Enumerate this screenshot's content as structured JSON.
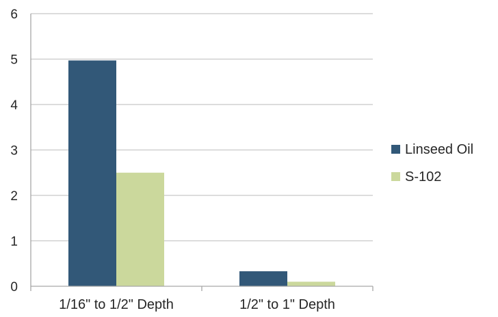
{
  "chart_data": {
    "type": "bar",
    "title": "",
    "xlabel": "",
    "ylabel": "",
    "categories": [
      "1/16\" to 1/2\" Depth",
      "1/2\" to 1\" Depth"
    ],
    "series": [
      {
        "name": "Linseed Oil",
        "color": "#325878",
        "values": [
          4.97,
          0.33
        ]
      },
      {
        "name": "S-102",
        "color": "#cbd89c",
        "values": [
          2.5,
          0.1
        ]
      }
    ],
    "ylim": [
      0,
      6
    ],
    "yticks": [
      "0",
      "1",
      "2",
      "3",
      "4",
      "5",
      "6"
    ],
    "grid": true,
    "legend": "right",
    "gridColor": "#c8c8c8",
    "axisColor": "#a6a6a6"
  }
}
